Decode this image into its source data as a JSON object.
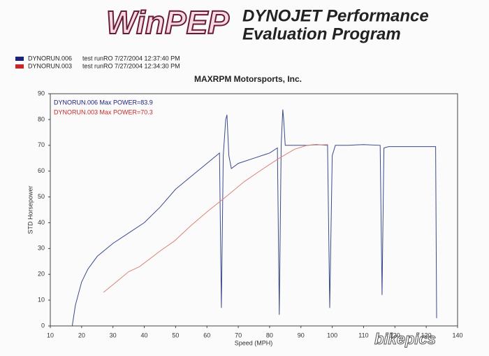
{
  "header": {
    "logo": "WinPEP",
    "title_line1": "DYNOJET Performance",
    "title_line2": "Evaluation Program"
  },
  "chart_data": {
    "type": "line",
    "title": "MAXRPM Motorsports, Inc.",
    "x_label": "Speed (MPH)",
    "y_label": "STD Horsepower",
    "xlim": [
      10,
      140
    ],
    "xticks": [
      10,
      20,
      30,
      40,
      50,
      60,
      70,
      80,
      90,
      100,
      110,
      120,
      130,
      140
    ],
    "ylim": [
      0,
      90
    ],
    "yticks": [
      0,
      10,
      20,
      30,
      40,
      50,
      60,
      70,
      80,
      90
    ],
    "grid": false,
    "series": [
      {
        "name": "DYNORUN.006",
        "description": "test runRO  7/27/2004 12:37:40 PM",
        "color": "#3a4a8c",
        "legend_color": "#1a237e",
        "x": [
          17,
          18,
          20,
          22,
          25,
          30,
          35,
          40,
          45,
          50,
          55,
          60,
          63,
          64,
          64.6,
          65.2,
          66,
          66.4,
          67,
          67.8,
          70,
          75,
          80,
          82.5,
          83.1,
          83.7,
          84.2,
          84.5,
          85,
          88,
          92,
          95,
          98.5,
          99.2,
          100,
          101,
          105,
          110,
          115.3,
          115.9,
          116.5,
          118,
          125,
          130,
          133,
          133.3
        ],
        "values": [
          0,
          8,
          17,
          22,
          27,
          32,
          36,
          40,
          46,
          53,
          58,
          63,
          66,
          67,
          7,
          66,
          80,
          81.8,
          66,
          61,
          63,
          65,
          67,
          69,
          4.3,
          70,
          83.9,
          80,
          70,
          70,
          70,
          70.3,
          70,
          7,
          66,
          70,
          70,
          70.3,
          70,
          12,
          69,
          69.5,
          69.5,
          69.5,
          69.5,
          3
        ]
      },
      {
        "name": "DYNORUN.003",
        "description": "test runRO  7/27/2004 12:34:30 PM",
        "color": "#d9837a",
        "legend_color": "#c62828",
        "x": [
          27,
          30,
          35,
          38.5,
          45,
          49.7,
          55,
          60.8,
          65,
          72,
          78,
          83.1,
          88,
          92,
          98.7
        ],
        "values": [
          13,
          16,
          21,
          23,
          29,
          33,
          39,
          45,
          49,
          56,
          61,
          65,
          68.5,
          70,
          70.3
        ]
      }
    ],
    "annotations": [
      {
        "text": "DYNORUN.006  Max POWER=83.9",
        "color": "#1a237e"
      },
      {
        "text": "DYNORUN.003  Max POWER=70.3",
        "color": "#c62828"
      }
    ],
    "watermark": "bikepics"
  }
}
